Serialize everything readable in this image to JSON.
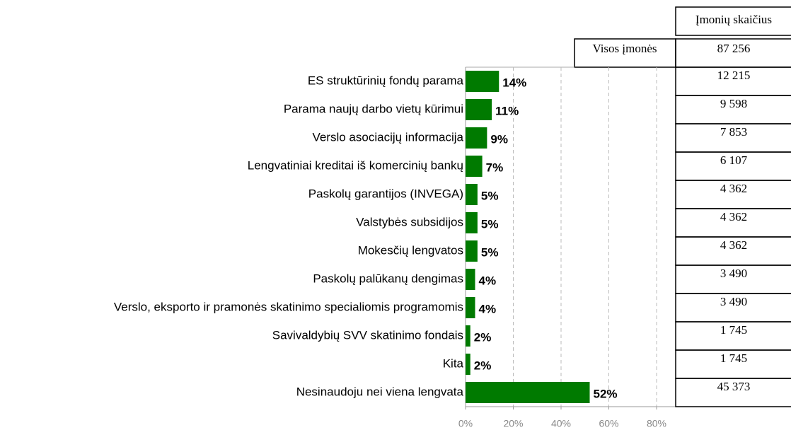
{
  "chart_data": {
    "type": "bar",
    "orientation": "horizontal",
    "categories": [
      "ES struktūrinių fondų parama",
      "Parama naujų darbo vietų kūrimui",
      "Verslo asociacijų informacija",
      "Lengvatiniai kreditai iš komercinių bankų",
      "Paskolų garantijos (INVEGA)",
      "Valstybės subsidijos",
      "Mokesčių lengvatos",
      "Paskolų palūkanų dengimas",
      "Verslo, eksporto ir pramonės skatinimo specialiomis programomis",
      "Savivaldybių SVV skatinimo fondais",
      "Kita",
      "Nesinaudoju nei viena lengvata"
    ],
    "values": [
      14,
      11,
      9,
      7,
      5,
      5,
      5,
      4,
      4,
      2,
      2,
      52
    ],
    "value_labels": [
      "14%",
      "11%",
      "9%",
      "7%",
      "5%",
      "5%",
      "5%",
      "4%",
      "4%",
      "2%",
      "2%",
      "52%"
    ],
    "color": "#007a00",
    "xlim": [
      0,
      88
    ],
    "xticks": [
      {
        "value": 0,
        "label": "0%"
      },
      {
        "value": 20,
        "label": "20%"
      },
      {
        "value": 40,
        "label": "40%"
      },
      {
        "value": 60,
        "label": "60%"
      },
      {
        "value": 80,
        "label": "80%"
      }
    ],
    "grid": true
  },
  "table": {
    "header": "Įmonių skaičius",
    "total_label": "Visos įmonės",
    "total": "87 256",
    "counts": [
      "12 215",
      "9 598",
      "7 853",
      "6 107",
      "4 362",
      "4 362",
      "4 362",
      "3 490",
      "3 490",
      "1 745",
      "1 745",
      "45 373"
    ]
  }
}
